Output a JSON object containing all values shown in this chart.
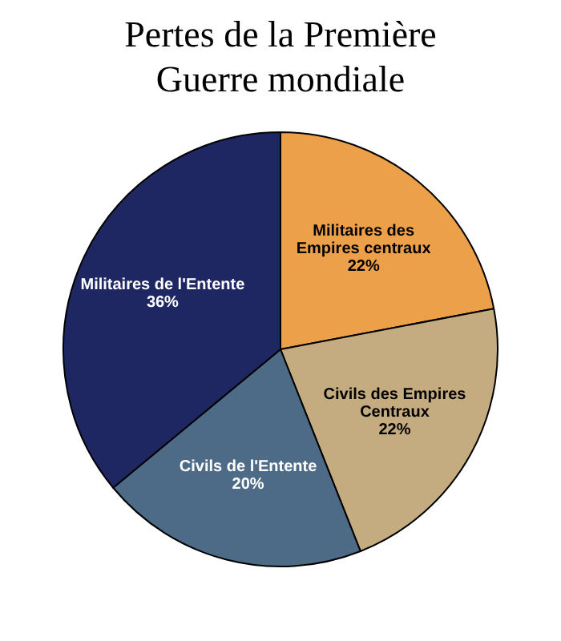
{
  "chart_data": {
    "type": "pie",
    "title": "Pertes de la Première Guerre mondiale",
    "categories": [
      "Militaires des Empires centraux",
      "Civils des Empires Centraux",
      "Civils de l'Entente",
      "Militaires de l'Entente"
    ],
    "values": [
      22,
      22,
      20,
      36
    ],
    "value_labels": [
      "22%",
      "22%",
      "20%",
      "36%"
    ],
    "colors": [
      "#eda04a",
      "#c4ab80",
      "#4d6b86",
      "#1e2761"
    ]
  }
}
